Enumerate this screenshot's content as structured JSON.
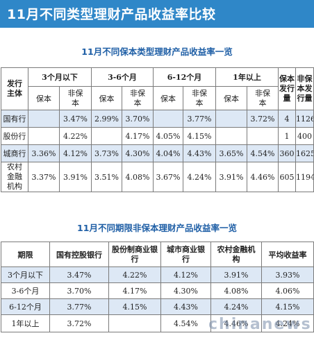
{
  "title": "11月不同类型理财产品收益率比较",
  "table1": {
    "title": "11月不同保本类型理财产品收益率一览",
    "issuer_header": "发行主体",
    "periods": [
      "3个月以下",
      "3-6个月",
      "6-12个月",
      "1年以上"
    ],
    "sub_headers": [
      "保本",
      "非保本"
    ],
    "count_headers": [
      "保本发行量",
      "非保本发行量"
    ],
    "rows": [
      {
        "name": "国有行",
        "cells": [
          "",
          "3.47%",
          "2.99%",
          "3.70%",
          "",
          "3.77%",
          "",
          "3.72%",
          "4",
          "1126"
        ]
      },
      {
        "name": "股份行",
        "cells": [
          "",
          "4.22%",
          "",
          "4.17%",
          "4.05%",
          "4.15%",
          "",
          "",
          "1",
          "400"
        ]
      },
      {
        "name": "城商行",
        "cells": [
          "3.36%",
          "4.12%",
          "3.73%",
          "4.30%",
          "4.04%",
          "4.43%",
          "3.65%",
          "4.54%",
          "360",
          "1625"
        ]
      },
      {
        "name": "农村金融机构",
        "cells": [
          "3.37%",
          "3.91%",
          "3.51%",
          "4.08%",
          "3.67%",
          "4.24%",
          "3.91%",
          "4.46%",
          "605",
          "1194"
        ]
      }
    ]
  },
  "table2": {
    "title": "11月不同期限非保本理财产品收益率一览",
    "headers": [
      "期限",
      "国有控股银行",
      "股份制商业银行",
      "城市商业银行",
      "农村金融机构",
      "平均收益率"
    ],
    "rows": [
      [
        "3个月以下",
        "3.47%",
        "4.22%",
        "4.12%",
        "3.91%",
        "3.93%"
      ],
      [
        "3-6个月",
        "3.70%",
        "4.17%",
        "4.30%",
        "4.08%",
        "4.06%"
      ],
      [
        "6-12个月",
        "3.77%",
        "4.15%",
        "4.43%",
        "4.24%",
        "4.15%"
      ],
      [
        "1年以上",
        "3.72%",
        "",
        "4.54%",
        "4.46%",
        "4.24%"
      ]
    ]
  },
  "watermark": "chinanews"
}
